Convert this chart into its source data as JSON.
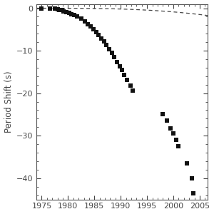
{
  "title": "",
  "xlabel": "",
  "ylabel": "Period Shift (s)",
  "xlim": [
    1974.0,
    2006.5
  ],
  "ylim": [
    -45,
    1.0
  ],
  "xticks": [
    1975,
    1980,
    1985,
    1990,
    1995,
    2000,
    2005
  ],
  "yticks": [
    0,
    -10,
    -20,
    -30,
    -40
  ],
  "background_color": "#ffffff",
  "curve_color": "#444444",
  "dot_color": "#111111",
  "data_points": [
    [
      1975.0,
      0.0
    ],
    [
      1976.5,
      -0.03
    ],
    [
      1977.5,
      -0.15
    ],
    [
      1978.0,
      -0.25
    ],
    [
      1978.3,
      -0.35
    ],
    [
      1978.8,
      -0.5
    ],
    [
      1979.2,
      -0.7
    ],
    [
      1979.7,
      -0.9
    ],
    [
      1980.2,
      -1.1
    ],
    [
      1980.6,
      -1.35
    ],
    [
      1981.2,
      -1.65
    ],
    [
      1981.7,
      -2.0
    ],
    [
      1982.5,
      -2.5
    ],
    [
      1983.2,
      -3.1
    ],
    [
      1983.8,
      -3.7
    ],
    [
      1984.3,
      -4.3
    ],
    [
      1984.8,
      -4.95
    ],
    [
      1985.3,
      -5.6
    ],
    [
      1985.8,
      -6.3
    ],
    [
      1986.3,
      -7.05
    ],
    [
      1986.8,
      -7.85
    ],
    [
      1987.3,
      -8.7
    ],
    [
      1987.8,
      -9.6
    ],
    [
      1988.3,
      -10.55
    ],
    [
      1988.8,
      -11.55
    ],
    [
      1989.3,
      -12.6
    ],
    [
      1989.8,
      -13.7
    ],
    [
      1990.2,
      -14.6
    ],
    [
      1990.7,
      -15.7
    ],
    [
      1991.2,
      -16.9
    ],
    [
      1991.8,
      -18.15
    ],
    [
      1992.3,
      -19.45
    ],
    [
      1998.0,
      -25.0
    ],
    [
      1998.8,
      -26.5
    ],
    [
      1999.5,
      -28.2
    ],
    [
      2000.0,
      -29.5
    ],
    [
      2000.5,
      -31.0
    ],
    [
      2001.0,
      -32.4
    ],
    [
      2002.5,
      -36.5
    ],
    [
      2003.5,
      -40.0
    ],
    [
      2003.8,
      -43.5
    ]
  ],
  "curve_xlim": [
    1974.0,
    2006.5
  ]
}
